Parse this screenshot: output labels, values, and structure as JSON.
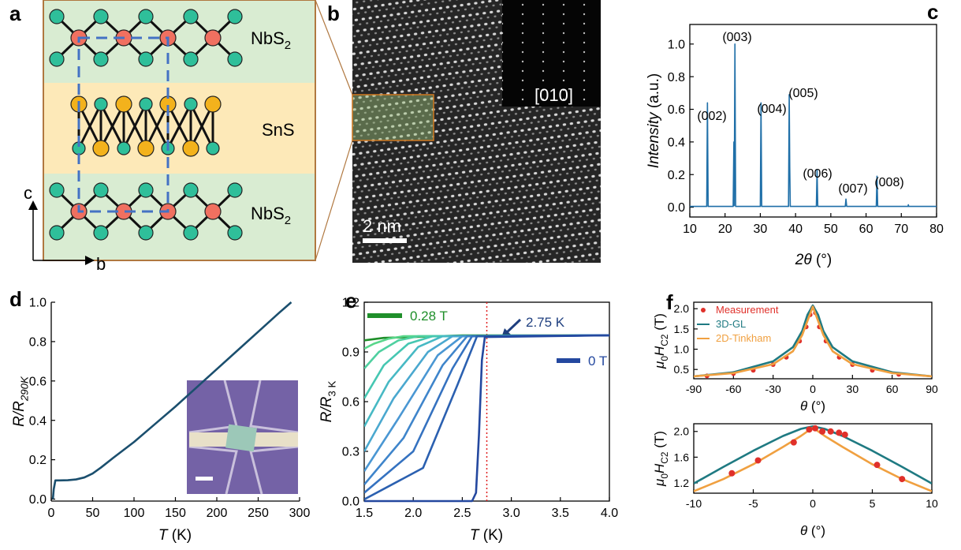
{
  "panels": [
    "a",
    "b",
    "c",
    "d",
    "e",
    "f"
  ],
  "diagram": {
    "top_layer": {
      "text": "NbS",
      "sub": "2"
    },
    "middle_layer": "SnS",
    "bottom_layer": {
      "text": "NbS",
      "sub": "2"
    },
    "axis_vertical": "c",
    "axis_horizontal": "b"
  },
  "image": {
    "scale_bar": "2 nm",
    "zone_axis": "[010]"
  },
  "chart_data": [
    {
      "type": "line",
      "frame": "box",
      "xlabel": [
        {
          "text": "2θ",
          "italic": true
        },
        {
          "text": " (°)"
        }
      ],
      "ylabel": [
        {
          "text": "Intensity",
          "italic": true
        },
        {
          "text": " (a.u.)"
        }
      ],
      "xlim": [
        10,
        80
      ],
      "ylim": [
        -0.06,
        1.12
      ],
      "xticks": [
        10,
        20,
        30,
        40,
        50,
        60,
        70,
        80
      ],
      "yticks": [
        {
          "value": 0,
          "label": "0.0"
        },
        0.2,
        0.4,
        0.6,
        0.8,
        {
          "value": 1,
          "label": "1.0"
        }
      ],
      "annotations": [
        "(002)",
        "(003)",
        "(004)",
        "(005)",
        "(006)",
        "(007)",
        "(008)"
      ],
      "series": [
        {
          "color": "#1f6fa8",
          "x": [
            10,
            14.8,
            15,
            15.2,
            22.3,
            22.5,
            22.6,
            22.8,
            23.0,
            30.0,
            30.2,
            30.4,
            38.0,
            38.2,
            38.35,
            38.5,
            45.9,
            46.1,
            46.3,
            54.1,
            54.3,
            54.5,
            62.9,
            63.1,
            63.3,
            71.9,
            72.0,
            72.1,
            80
          ],
          "values": [
            0.005,
            0.005,
            0.64,
            0.005,
            0.005,
            0.4,
            0.01,
            1.0,
            0.005,
            0.005,
            0.64,
            0.005,
            0.005,
            0.69,
            0.25,
            0.005,
            0.005,
            0.23,
            0.005,
            0.005,
            0.05,
            0.005,
            0.005,
            0.19,
            0.005,
            0.005,
            0.015,
            0.005,
            0.005
          ]
        }
      ]
    },
    {
      "type": "line",
      "frame": "axes",
      "xlabel": [
        {
          "text": "T",
          "italic": true
        },
        {
          "text": " (K)"
        }
      ],
      "ylabel": [
        {
          "text": "R/R",
          "italic": true
        },
        {
          "text": "290K",
          "sub": true,
          "italic": true
        }
      ],
      "xlim": [
        0,
        300
      ],
      "ylim": [
        -0.01,
        1.0
      ],
      "xticks": [
        0,
        50,
        100,
        150,
        200,
        250,
        300
      ],
      "yticks": [
        {
          "value": 0,
          "label": "0.0"
        },
        0.2,
        0.4,
        0.6,
        0.8,
        {
          "value": 1,
          "label": "1.0"
        }
      ],
      "series": [
        {
          "color": "#1b4f6e",
          "x": [
            2,
            3,
            5,
            10,
            20,
            30,
            40,
            50,
            60,
            75,
            100,
            125,
            150,
            175,
            200,
            225,
            250,
            275,
            290
          ],
          "values": [
            0.0,
            0.05,
            0.095,
            0.095,
            0.096,
            0.1,
            0.11,
            0.13,
            0.16,
            0.21,
            0.29,
            0.38,
            0.47,
            0.565,
            0.66,
            0.755,
            0.85,
            0.945,
            1.0
          ]
        }
      ]
    },
    {
      "type": "line",
      "frame": "box",
      "xlabel": [
        {
          "text": "T",
          "italic": true
        },
        {
          "text": " (K)"
        }
      ],
      "ylabel": [
        {
          "text": "R/R",
          "italic": true
        },
        {
          "text": "3 K",
          "sub": true
        }
      ],
      "xlim": [
        1.5,
        4.0
      ],
      "ylim": [
        0,
        1.2
      ],
      "xticks": [
        1.5,
        {
          "value": 2,
          "label": "2.0"
        },
        2.5,
        {
          "value": 3,
          "label": "3.0"
        },
        3.5,
        {
          "value": 4,
          "label": "4.0"
        }
      ],
      "yticks": [
        {
          "value": 0,
          "label": "0.0"
        },
        0.3,
        0.6,
        0.9,
        1.2
      ],
      "vline": 2.75,
      "vline_label": "2.75 K",
      "series": [
        {
          "name": "0.28 T",
          "color": "#1f8f2a",
          "x": [
            1.5,
            1.7,
            2.0,
            2.5,
            4.0
          ],
          "values": [
            0.97,
            0.985,
            0.99,
            1.0,
            1.0
          ]
        },
        {
          "color": "#58d68a",
          "x": [
            1.5,
            1.6,
            1.75,
            1.9,
            4.0
          ],
          "values": [
            0.92,
            0.95,
            0.98,
            0.995,
            1.0
          ]
        },
        {
          "color": "#4fd0a0",
          "x": [
            1.5,
            1.65,
            1.85,
            2.05,
            4.0
          ],
          "values": [
            0.8,
            0.9,
            0.97,
            0.995,
            1.0
          ]
        },
        {
          "color": "#46c7b2",
          "x": [
            1.5,
            1.7,
            1.95,
            2.2,
            4.0
          ],
          "values": [
            0.62,
            0.82,
            0.95,
            0.995,
            1.0
          ]
        },
        {
          "color": "#47b9c4",
          "x": [
            1.5,
            1.75,
            2.05,
            2.3,
            4.0
          ],
          "values": [
            0.45,
            0.72,
            0.93,
            0.995,
            1.0
          ]
        },
        {
          "color": "#4aa8cf",
          "x": [
            1.5,
            1.8,
            2.15,
            2.4,
            4.0
          ],
          "values": [
            0.3,
            0.62,
            0.9,
            0.995,
            1.0
          ]
        },
        {
          "color": "#4a97d3",
          "x": [
            1.5,
            1.85,
            2.25,
            2.5,
            4.0
          ],
          "values": [
            0.18,
            0.5,
            0.88,
            0.995,
            1.0
          ]
        },
        {
          "color": "#3f85cb",
          "x": [
            1.5,
            1.9,
            2.3,
            2.55,
            4.0
          ],
          "values": [
            0.1,
            0.38,
            0.82,
            0.995,
            1.0
          ]
        },
        {
          "color": "#3572c0",
          "x": [
            1.5,
            2.0,
            2.4,
            2.6,
            4.0
          ],
          "values": [
            0.05,
            0.3,
            0.8,
            0.995,
            1.0
          ]
        },
        {
          "color": "#2b60b0",
          "x": [
            1.5,
            2.1,
            2.45,
            2.65,
            4.0
          ],
          "values": [
            0.01,
            0.2,
            0.7,
            0.995,
            1.0
          ]
        },
        {
          "name": "0 T",
          "color": "#24489f",
          "x": [
            1.5,
            2.6,
            2.64,
            2.67,
            2.7,
            2.73,
            4.0
          ],
          "values": [
            0,
            0,
            0.05,
            0.4,
            0.85,
            0.99,
            1.0
          ]
        }
      ]
    },
    {
      "type": "line",
      "frame": "box",
      "legend": "upper-left",
      "xlabel": [
        {
          "text": "θ",
          "italic": true
        },
        {
          "text": " (°)"
        }
      ],
      "ylabel": [
        {
          "text": "μ",
          "italic": true
        },
        {
          "text": "0",
          "sub": true
        },
        {
          "text": "H",
          "italic": true
        },
        {
          "text": "C2",
          "sub": true
        },
        {
          "text": " (T)"
        }
      ],
      "xlim": [
        -90,
        90
      ],
      "ylim": [
        0.27,
        2.16
      ],
      "xticks": [
        -90,
        -60,
        -30,
        0,
        30,
        60,
        90
      ],
      "yticks": [
        0.5,
        {
          "value": 1,
          "label": "1.0"
        },
        1.5,
        {
          "value": 2,
          "label": "2.0"
        }
      ],
      "series": [
        {
          "name": "Measurement",
          "mode": "markers",
          "color": "#e0302a",
          "x": [
            -80,
            -60,
            -45,
            -30,
            -20,
            -10,
            -5,
            -2,
            0,
            2,
            5,
            10,
            20,
            30,
            45,
            65
          ],
          "values": [
            0.34,
            0.4,
            0.48,
            0.62,
            0.8,
            1.2,
            1.55,
            1.85,
            2.02,
            1.9,
            1.55,
            1.2,
            0.8,
            0.62,
            0.48,
            0.38
          ]
        },
        {
          "name": "3D-GL",
          "color": "#1f7a82",
          "x": [
            -90,
            -60,
            -30,
            -15,
            -8,
            -4,
            0,
            4,
            8,
            15,
            30,
            60,
            90
          ],
          "values": [
            0.33,
            0.43,
            0.7,
            1.05,
            1.45,
            1.85,
            2.08,
            1.85,
            1.45,
            1.05,
            0.7,
            0.43,
            0.33
          ]
        },
        {
          "name": "2D-Tinkham",
          "color": "#f0a040",
          "x": [
            -90,
            -60,
            -30,
            -15,
            -8,
            -4,
            0,
            4,
            8,
            15,
            30,
            60,
            90
          ],
          "values": [
            0.33,
            0.41,
            0.63,
            0.95,
            1.35,
            1.7,
            2.05,
            1.7,
            1.35,
            0.95,
            0.63,
            0.41,
            0.33
          ]
        }
      ]
    },
    {
      "type": "line",
      "frame": "box",
      "xlabel": [
        {
          "text": "θ",
          "italic": true
        },
        {
          "text": " (°)"
        }
      ],
      "ylabel": [
        {
          "text": "μ",
          "italic": true
        },
        {
          "text": "0",
          "sub": true
        },
        {
          "text": "H",
          "italic": true
        },
        {
          "text": "C2",
          "sub": true
        },
        {
          "text": " (T)"
        }
      ],
      "xlim": [
        -10,
        10
      ],
      "ylim": [
        1.04,
        2.12
      ],
      "xticks": [
        -10,
        -5,
        0,
        5,
        10
      ],
      "yticks": [
        1.2,
        1.6,
        {
          "value": 2,
          "label": "2.0"
        }
      ],
      "series": [
        {
          "color": "#1f7a82",
          "x": [
            -10,
            -7.5,
            -5,
            -2.5,
            -1,
            0,
            1,
            2.5,
            5,
            7.5,
            10
          ],
          "values": [
            1.19,
            1.45,
            1.7,
            1.93,
            2.04,
            2.08,
            2.04,
            1.93,
            1.7,
            1.45,
            1.19
          ]
        },
        {
          "color": "#f0a040",
          "x": [
            -10,
            -7.5,
            -5,
            -2.5,
            -1,
            0,
            1,
            2.5,
            5,
            7.5,
            10
          ],
          "values": [
            1.07,
            1.26,
            1.49,
            1.76,
            1.93,
            2.06,
            1.93,
            1.76,
            1.49,
            1.26,
            1.07
          ]
        },
        {
          "mode": "markers",
          "color": "#e0302a",
          "x": [
            -6.8,
            -4.6,
            -1.6,
            -0.3,
            0.2,
            0.8,
            1.5,
            2.2,
            2.7,
            5.4,
            7.5
          ],
          "values": [
            1.35,
            1.55,
            1.83,
            2.03,
            2.05,
            2.0,
            2.0,
            1.98,
            1.95,
            1.48,
            1.26
          ]
        }
      ]
    }
  ]
}
